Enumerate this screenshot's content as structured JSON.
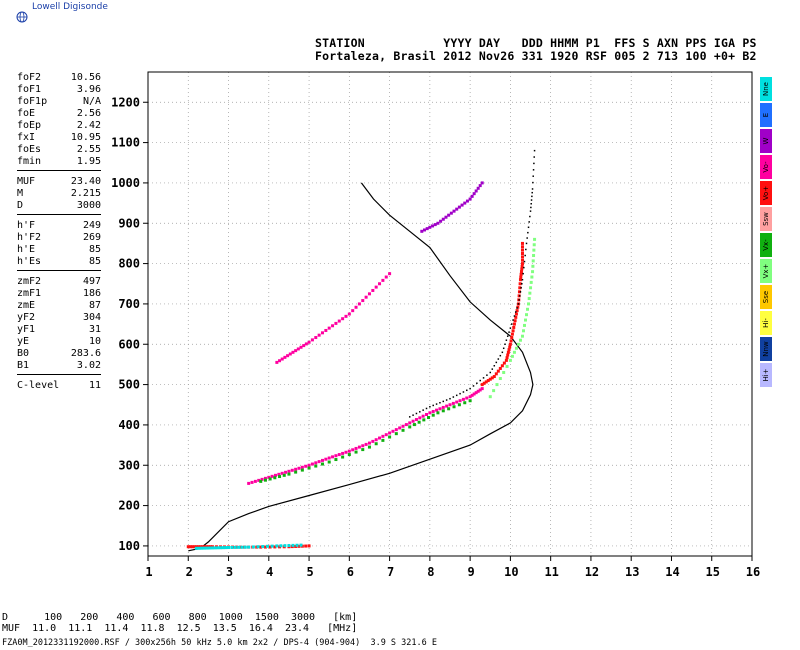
{
  "logo": {
    "text": "Lowell Digisonde"
  },
  "header": {
    "line1": "STATION           YYYY DAY   DDD HHMM P1  FFS S AXN PPS IGA PS",
    "line2": "Fortaleza, Brasil 2012 Nov26 331 1920 RSF 005 2 713 100 +0+ B2"
  },
  "sidebar": {
    "groups": [
      [
        [
          "foF2",
          "10.56"
        ],
        [
          "foF1",
          "3.96"
        ],
        [
          "foF1p",
          "N/A"
        ],
        [
          "foE",
          "2.56"
        ],
        [
          "foEp",
          "2.42"
        ],
        [
          "fxI",
          "10.95"
        ],
        [
          "foEs",
          "2.55"
        ],
        [
          "fmin",
          "1.95"
        ]
      ],
      [
        [
          "MUF",
          "23.40"
        ],
        [
          "M",
          "2.215"
        ],
        [
          "D",
          "3000"
        ]
      ],
      [
        [
          "h'F",
          "249"
        ],
        [
          "h'F2",
          "269"
        ],
        [
          "h'E",
          "85"
        ],
        [
          "h'Es",
          "85"
        ]
      ],
      [
        [
          "zmF2",
          "497"
        ],
        [
          "zmF1",
          "186"
        ],
        [
          "zmE",
          "87"
        ],
        [
          "yF2",
          "304"
        ],
        [
          "yF1",
          "31"
        ],
        [
          "yE",
          "10"
        ],
        [
          "B0",
          "283.6"
        ],
        [
          "B1",
          "3.02"
        ]
      ],
      [
        [
          "C-level",
          "11"
        ]
      ]
    ]
  },
  "legend": [
    {
      "label": "Nne",
      "color": "#00e0e0"
    },
    {
      "label": "E",
      "color": "#2070ff"
    },
    {
      "label": "W",
      "color": "#a000c8"
    },
    {
      "label": "Vo-",
      "color": "#ff00a0"
    },
    {
      "label": "Vo+",
      "color": "#ff1010"
    },
    {
      "label": "Ssw",
      "color": "#ffa0a0"
    },
    {
      "label": "Vx-",
      "color": "#10b010"
    },
    {
      "label": "Vx+",
      "color": "#80ff80"
    },
    {
      "label": "Sse",
      "color": "#ffc800"
    },
    {
      "label": "Hi-",
      "color": "#ffff40"
    },
    {
      "label": "Nnw",
      "color": "#1040a0"
    },
    {
      "label": "Hi+",
      "color": "#b8b8ff"
    }
  ],
  "footer": {
    "line1": "D      100   200   400   600   800  1000  1500  3000   [km]",
    "line2": "MUF  11.0  11.1  11.4  11.8  12.5  13.5  16.4  23.4   [MHz]",
    "line3": "FZA0M_2012331192000.RSF / 300x256h 50 kHz 5.0 km 2x2 / DPS-4 (904-904)  3.9 S 321.6 E"
  },
  "chart_data": {
    "type": "scatter",
    "xlim": [
      1,
      16
    ],
    "ylim": [
      75,
      1275
    ],
    "xticks": [
      1,
      2,
      3,
      4,
      5,
      6,
      7,
      8,
      9,
      10,
      11,
      12,
      13,
      14,
      15,
      16
    ],
    "yticks": [
      100,
      200,
      300,
      400,
      500,
      600,
      700,
      800,
      900,
      1000,
      1100,
      1200
    ],
    "grid": true,
    "xlabel": "",
    "ylabel": "",
    "profile": [
      [
        2.0,
        88
      ],
      [
        2.3,
        94
      ],
      [
        2.5,
        110
      ],
      [
        3.0,
        160
      ],
      [
        3.5,
        180
      ],
      [
        4.0,
        198
      ],
      [
        5.0,
        225
      ],
      [
        6.0,
        252
      ],
      [
        7.0,
        280
      ],
      [
        8.0,
        315
      ],
      [
        9.0,
        350
      ],
      [
        9.5,
        378
      ],
      [
        10.0,
        405
      ],
      [
        10.3,
        435
      ],
      [
        10.5,
        475
      ],
      [
        10.56,
        500
      ],
      [
        10.5,
        530
      ],
      [
        10.3,
        580
      ],
      [
        10.0,
        620
      ],
      [
        9.5,
        660
      ],
      [
        9.0,
        705
      ],
      [
        8.5,
        770
      ],
      [
        8.0,
        840
      ],
      [
        7.5,
        880
      ],
      [
        7.0,
        920
      ],
      [
        6.6,
        960
      ],
      [
        6.3,
        1000
      ]
    ],
    "series": [
      {
        "color": "#ff00a0",
        "points": [
          [
            3.5,
            255
          ],
          [
            4.0,
            270
          ],
          [
            4.5,
            285
          ],
          [
            5.0,
            300
          ],
          [
            5.5,
            318
          ],
          [
            6.0,
            335
          ],
          [
            6.5,
            355
          ],
          [
            7.0,
            380
          ],
          [
            7.5,
            405
          ],
          [
            8.0,
            430
          ],
          [
            8.5,
            450
          ],
          [
            9.0,
            470
          ],
          [
            9.3,
            490
          ]
        ]
      },
      {
        "color": "#10b010",
        "points": [
          [
            3.8,
            260
          ],
          [
            4.5,
            278
          ],
          [
            5.5,
            308
          ],
          [
            6.5,
            345
          ],
          [
            7.5,
            395
          ],
          [
            8.2,
            430
          ],
          [
            9.0,
            460
          ]
        ]
      },
      {
        "color": "#ff1010",
        "points": [
          [
            9.3,
            500
          ],
          [
            9.6,
            520
          ],
          [
            9.9,
            560
          ],
          [
            10.0,
            600
          ],
          [
            10.1,
            650
          ],
          [
            10.2,
            700
          ],
          [
            10.25,
            760
          ],
          [
            10.3,
            800
          ],
          [
            10.3,
            850
          ]
        ]
      },
      {
        "color": "#80ff80",
        "points": [
          [
            9.5,
            470
          ],
          [
            10.0,
            560
          ],
          [
            10.3,
            620
          ],
          [
            10.45,
            700
          ],
          [
            10.55,
            780
          ],
          [
            10.6,
            860
          ]
        ]
      },
      {
        "color": "#ff00a0",
        "points": [
          [
            4.2,
            555
          ],
          [
            4.6,
            580
          ],
          [
            5.0,
            605
          ],
          [
            5.5,
            640
          ],
          [
            6.0,
            675
          ],
          [
            6.5,
            725
          ],
          [
            7.0,
            775
          ]
        ]
      },
      {
        "color": "#a000c8",
        "points": [
          [
            7.8,
            880
          ],
          [
            8.2,
            900
          ],
          [
            8.6,
            930
          ],
          [
            9.0,
            960
          ],
          [
            9.3,
            1000
          ]
        ]
      },
      {
        "color": "#000000",
        "points": [
          [
            7.5,
            420
          ],
          [
            8.0,
            445
          ],
          [
            8.5,
            465
          ],
          [
            9.0,
            490
          ],
          [
            9.5,
            530
          ],
          [
            9.8,
            580
          ],
          [
            10.0,
            640
          ],
          [
            10.2,
            700
          ],
          [
            10.3,
            760
          ],
          [
            10.4,
            850
          ],
          [
            10.5,
            930
          ],
          [
            10.55,
            985
          ],
          [
            10.6,
            1080
          ]
        ]
      },
      {
        "color": "#ff1010",
        "points": [
          [
            2.0,
            98
          ],
          [
            2.3,
            98
          ],
          [
            2.6,
            98
          ],
          [
            3.2,
            97
          ],
          [
            3.8,
            97
          ],
          [
            4.5,
            98
          ],
          [
            5.0,
            100
          ]
        ]
      },
      {
        "color": "#00e0e0",
        "points": [
          [
            2.2,
            94
          ],
          [
            2.6,
            95
          ],
          [
            3.0,
            96
          ],
          [
            3.5,
            97
          ],
          [
            4.2,
            100
          ],
          [
            4.8,
            102
          ]
        ]
      }
    ]
  }
}
